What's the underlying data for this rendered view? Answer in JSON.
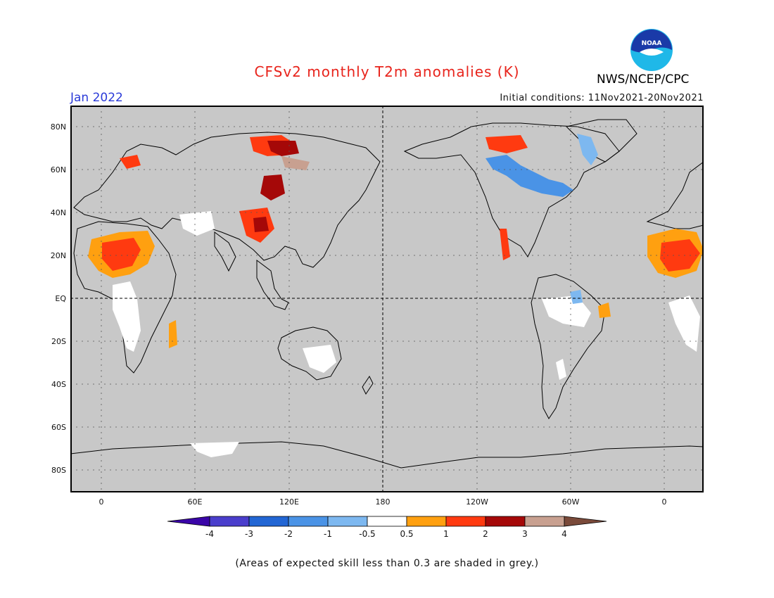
{
  "header": {
    "title": "CFSv2 monthly T2m anomalies (K)",
    "period": "Jan 2022",
    "initial_conditions": "Initial conditions: 11Nov2021-20Nov2021",
    "agency": "NWS/NCEP/CPC",
    "logo_text": "NOAA"
  },
  "map": {
    "lat_labels": [
      "80N",
      "60N",
      "40N",
      "20N",
      "EQ",
      "20S",
      "40S",
      "60S",
      "80S"
    ],
    "lon_labels": [
      "0",
      "60E",
      "120E",
      "180",
      "120W",
      "60W",
      "0"
    ],
    "colors": {
      "ocean_mask": "#c8c8c8",
      "neutral": "#ffffff",
      "coast": "#000000"
    }
  },
  "legend": {
    "labels": [
      "-4",
      "-3",
      "-2",
      "-1",
      "-0.5",
      "0.5",
      "1",
      "2",
      "3",
      "4"
    ],
    "colors": [
      "#3a05a8",
      "#4a3ecc",
      "#2266d4",
      "#4a93e6",
      "#7db8f0",
      "#ffffff",
      "#ffa010",
      "#ff3a10",
      "#a50808",
      "#c8a090",
      "#7a4a3a"
    ]
  },
  "footnote": "(Areas of expected skill less than 0.3 are shaded in grey.)"
}
